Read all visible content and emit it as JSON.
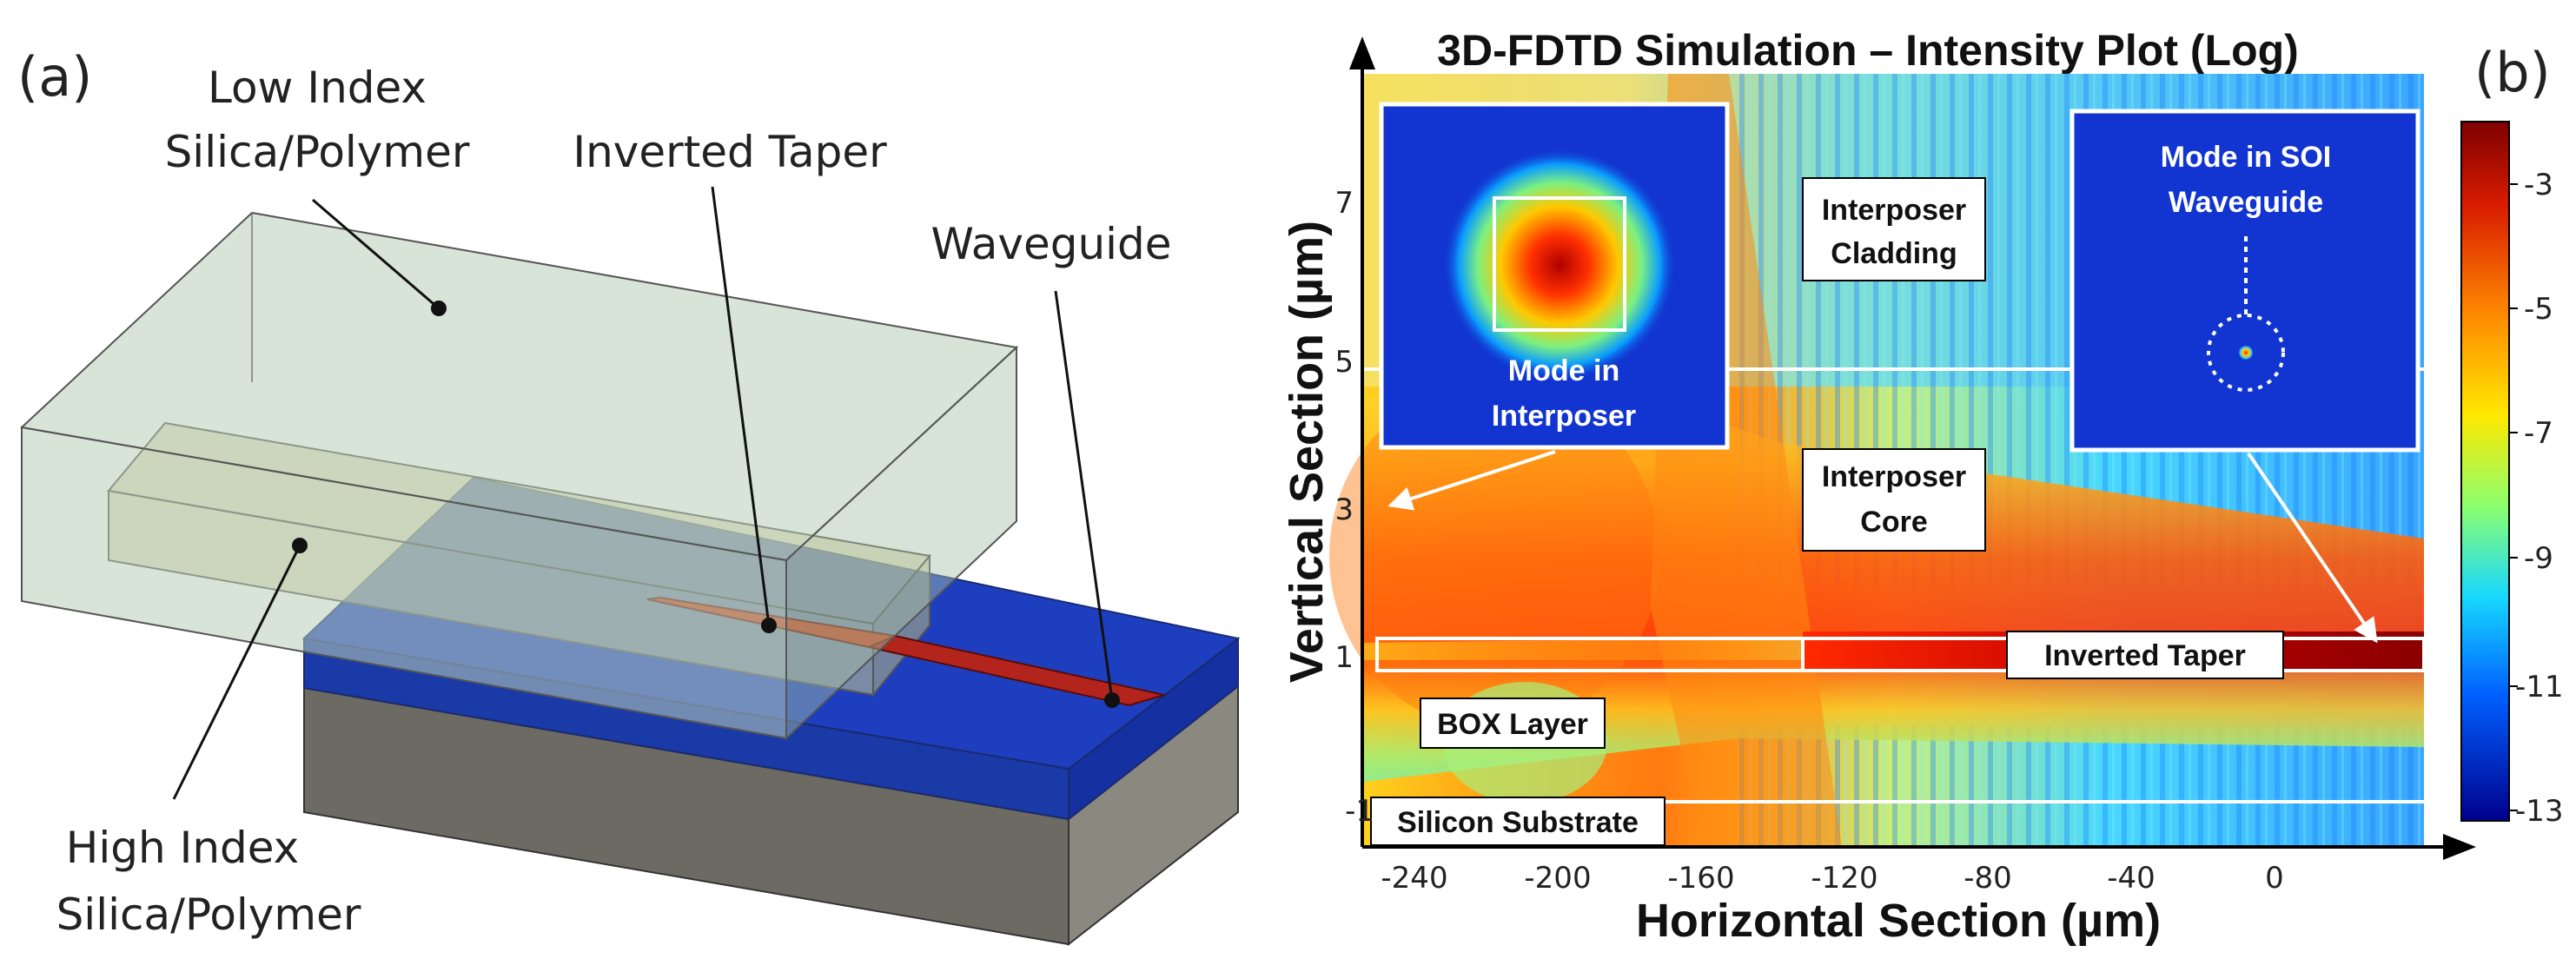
{
  "panel_a": {
    "label": "(a)",
    "low_index_line1": "Low Index",
    "low_index_line2": "Silica/Polymer",
    "inverted_taper": "Inverted Taper",
    "waveguide": "Waveguide",
    "high_index_line1": "High Index",
    "high_index_line2": "Silica/Polymer"
  },
  "panel_b": {
    "label": "(b)",
    "title": "3D-FDTD Simulation – Intensity Plot (Log)",
    "xlabel": "Horizontal Section (µm)",
    "ylabel": "Vertical Section (µm)",
    "x_ticks": [
      "-240",
      "-200",
      "-160",
      "-120",
      "-80",
      "-40",
      "0"
    ],
    "y_ticks": [
      "7",
      "5",
      "3",
      "1",
      "-1"
    ],
    "colorbar_ticks": [
      "-3",
      "-5",
      "-7",
      "-9",
      "-11",
      "-13"
    ],
    "inset_left_line1": "Mode in",
    "inset_left_line2": "Interposer",
    "inset_right_line1": "Mode in SOI",
    "inset_right_line2": "Waveguide",
    "region_cladding_line1": "Interposer",
    "region_cladding_line2": "Cladding",
    "region_core_line1": "Interposer",
    "region_core_line2": "Core",
    "region_taper": "Inverted Taper",
    "region_box": "BOX Layer",
    "region_substrate": "Silicon Substrate"
  },
  "colors": {
    "substrate_side": "#6c6a62",
    "box_layer": "#1f3fb0",
    "cladding_box": "#b9cdb9",
    "core": "#c9c98f",
    "waveguide": "#b3241c",
    "colormap_high": "#8a0000",
    "colormap_low": "#00008f"
  }
}
